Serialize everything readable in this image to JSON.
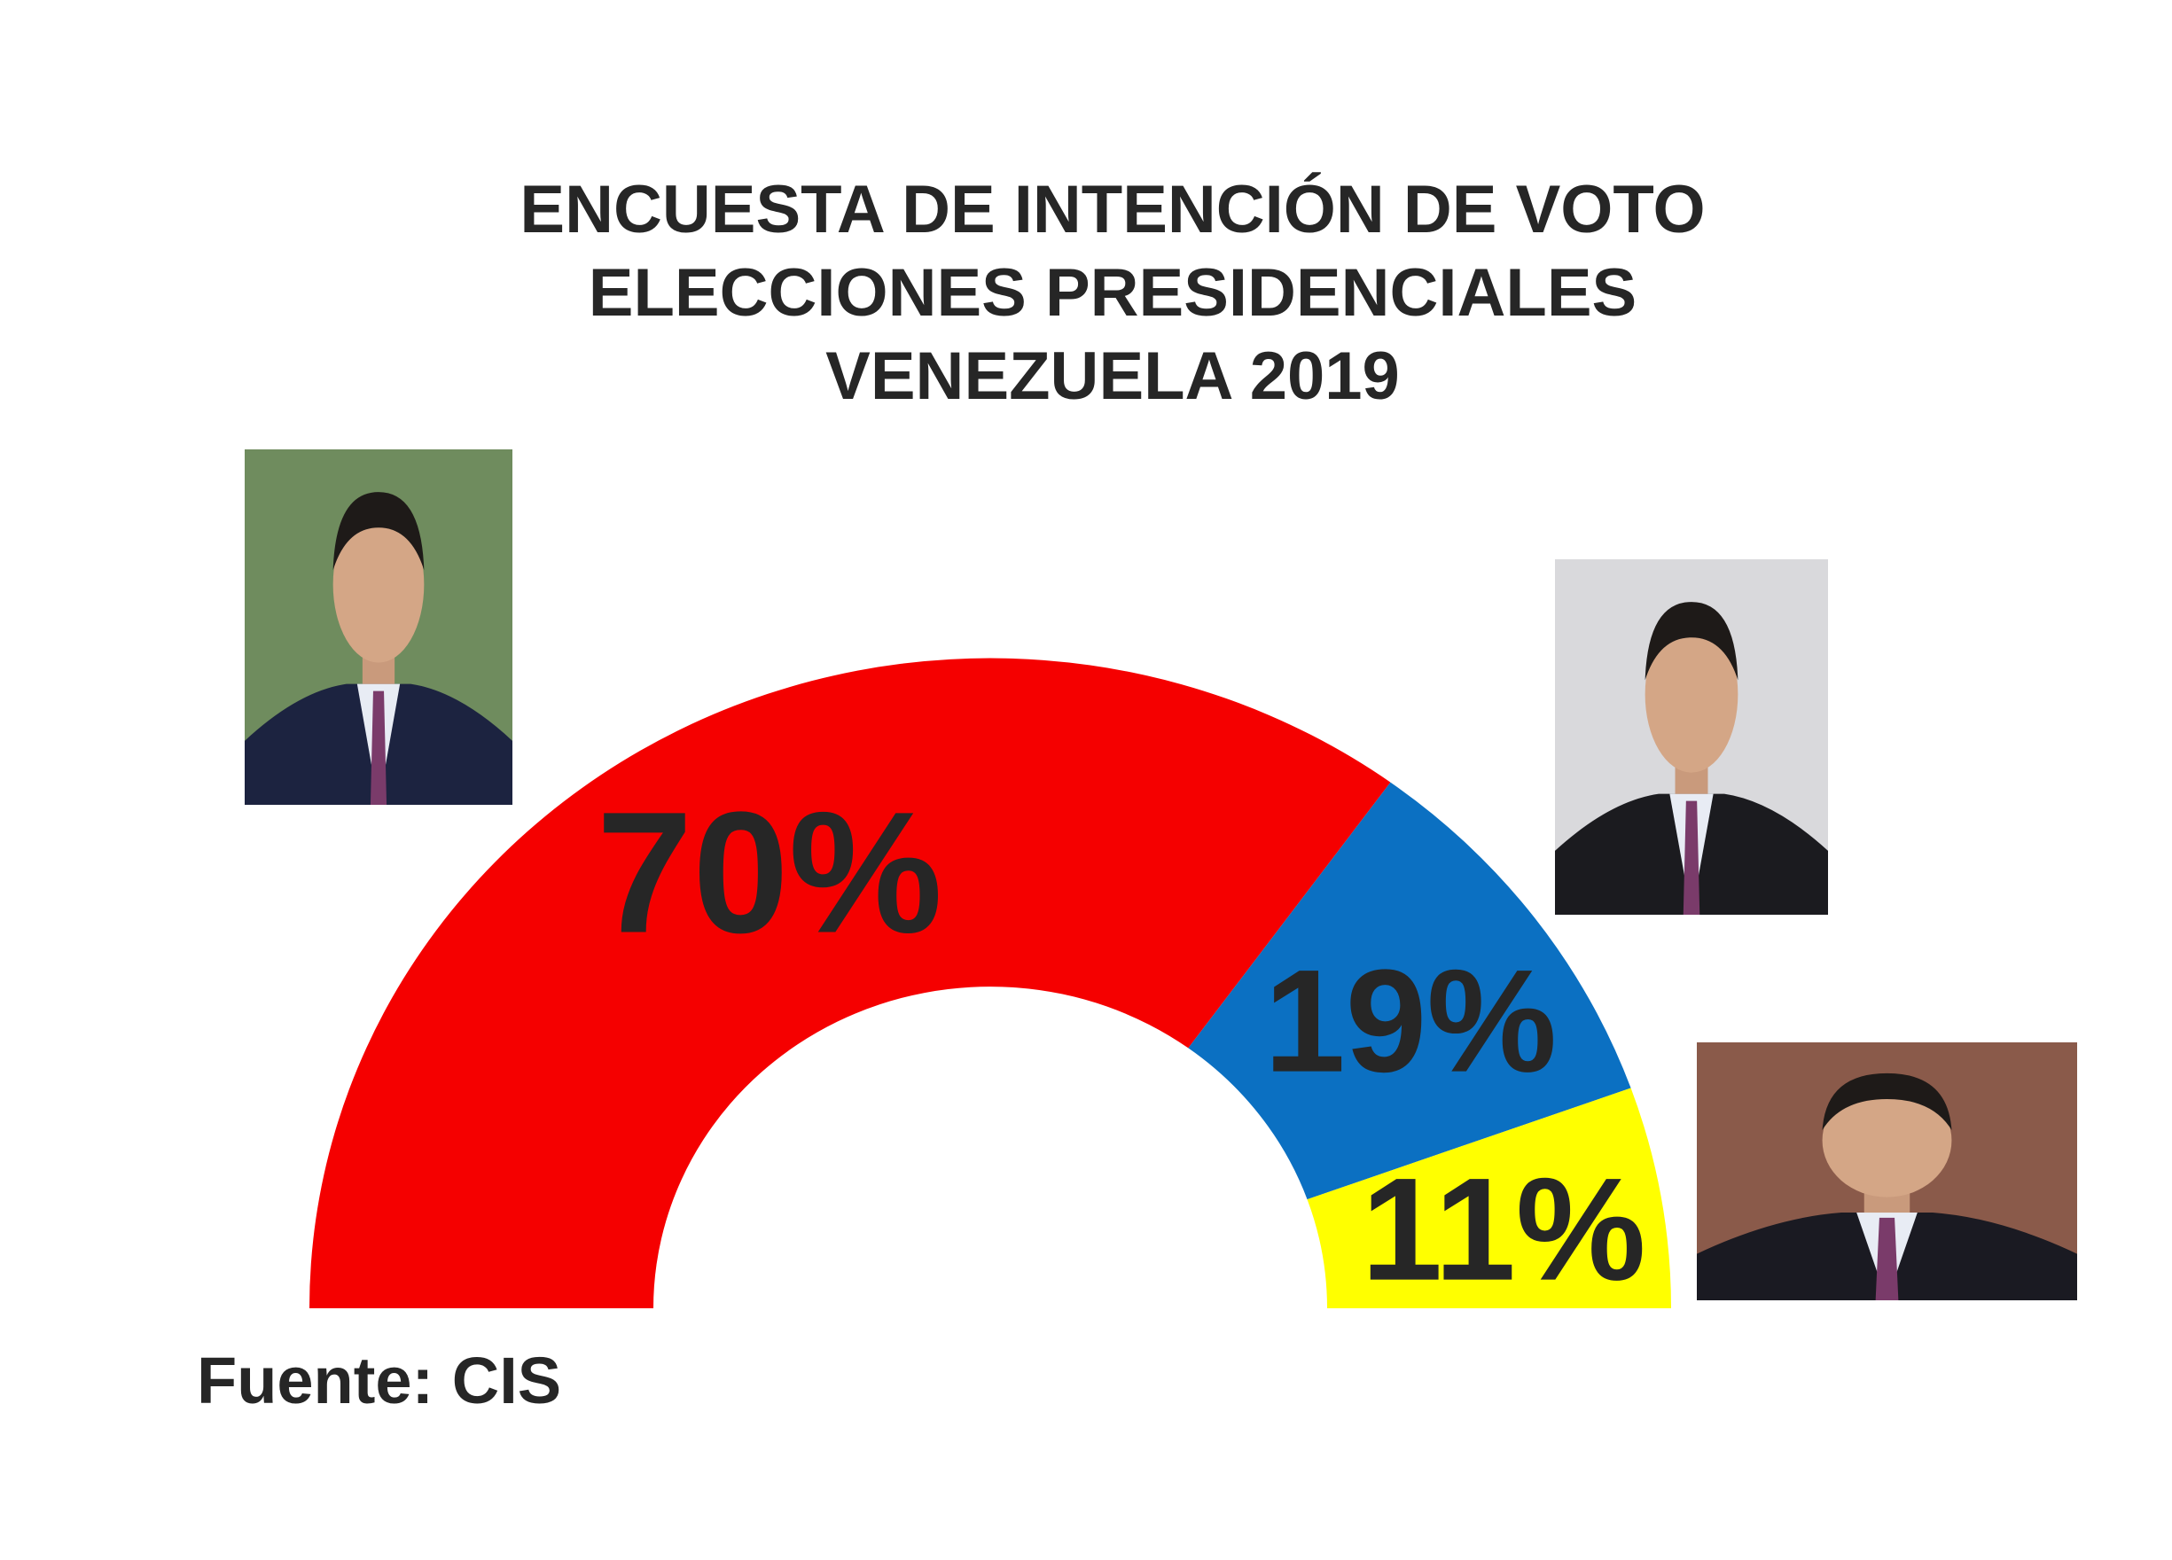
{
  "chart_data": {
    "type": "pie",
    "variant": "semi-donut",
    "title": [
      "ENCUESTA DE INTENCIÓN DE VOTO",
      "ELECCIONES PRESIDENCIALES",
      "VENEZUELA 2019"
    ],
    "categories": [
      "",
      "",
      ""
    ],
    "values": [
      70,
      19,
      11
    ],
    "labels": [
      "70%",
      "19%",
      "11%"
    ],
    "colors": [
      "#f50000",
      "#0b70c2",
      "#ffff00"
    ],
    "label_color": "#262626",
    "source": "Fuente: CIS"
  },
  "photos": [
    {
      "icon": "person-photo",
      "background": "#6f8c5e",
      "suit": "#1c2340"
    },
    {
      "icon": "person-photo",
      "background": "#d9d9dc",
      "suit": "#1b1b1f"
    },
    {
      "icon": "person-photo",
      "background": "#8a5a4a",
      "suit": "#1a1a22"
    }
  ]
}
